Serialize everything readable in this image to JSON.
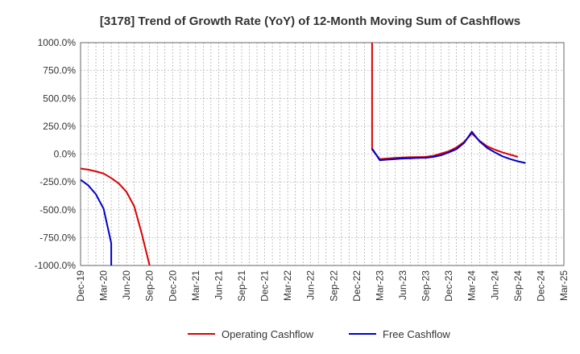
{
  "chart_data": {
    "type": "line",
    "title": "[3178]  Trend of Growth Rate (YoY) of 12-Month Moving Sum of Cashflows",
    "xlabel": "",
    "ylabel": "",
    "ylim": [
      -1000,
      1000
    ],
    "y_ticks": [
      1000,
      750,
      500,
      250,
      0,
      -250,
      -500,
      -750,
      -1000
    ],
    "y_tick_labels": [
      "1000.0%",
      "750.0%",
      "500.0%",
      "250.0%",
      "0.0%",
      "-250.0%",
      "-500.0%",
      "-750.0%",
      "-1000.0%"
    ],
    "x_tick_labels": [
      "Dec-19",
      "Mar-20",
      "Jun-20",
      "Sep-20",
      "Dec-20",
      "Mar-21",
      "Jun-21",
      "Sep-21",
      "Dec-21",
      "Mar-22",
      "Jun-22",
      "Sep-22",
      "Dec-22",
      "Mar-23",
      "Jun-23",
      "Sep-23",
      "Dec-23",
      "Mar-24",
      "Jun-24",
      "Sep-24",
      "Dec-24",
      "Mar-25"
    ],
    "x_start": "Dec-19",
    "x_end": "Mar-25",
    "grid": true,
    "legend_position": "bottom",
    "series": [
      {
        "name": "Operating Cashflow",
        "color": "#dd0000",
        "segments": [
          [
            [
              "Dec-19",
              -130
            ],
            [
              "Jan-20",
              -140
            ],
            [
              "Feb-20",
              -155
            ],
            [
              "Mar-20",
              -175
            ],
            [
              "Apr-20",
              -215
            ],
            [
              "May-20",
              -265
            ],
            [
              "Jun-20",
              -340
            ],
            [
              "Jul-20",
              -470
            ],
            [
              "Aug-20",
              -720
            ],
            [
              "Sep-20",
              -1080
            ]
          ],
          [
            [
              "Feb-23",
              1150
            ],
            [
              "Feb-23",
              40
            ],
            [
              "Mar-23",
              -45
            ],
            [
              "Apr-23",
              -40
            ],
            [
              "May-23",
              -35
            ],
            [
              "Jun-23",
              -30
            ],
            [
              "Jul-23",
              -28
            ],
            [
              "Aug-23",
              -27
            ],
            [
              "Sep-23",
              -25
            ],
            [
              "Oct-23",
              -15
            ],
            [
              "Nov-23",
              5
            ],
            [
              "Dec-23",
              25
            ],
            [
              "Jan-24",
              60
            ],
            [
              "Feb-24",
              110
            ],
            [
              "Mar-24",
              185
            ],
            [
              "Apr-24",
              120
            ],
            [
              "May-24",
              70
            ],
            [
              "Jun-24",
              40
            ],
            [
              "Jul-24",
              15
            ],
            [
              "Aug-24",
              -5
            ],
            [
              "Sep-24",
              -25
            ]
          ]
        ]
      },
      {
        "name": "Free Cashflow",
        "color": "#0000cc",
        "segments": [
          [
            [
              "Dec-19",
              -230
            ],
            [
              "Jan-20",
              -280
            ],
            [
              "Feb-20",
              -360
            ],
            [
              "Mar-20",
              -490
            ],
            [
              "Apr-20",
              -800
            ],
            [
              "Apr-20",
              -1080
            ]
          ],
          [
            [
              "Feb-23",
              50
            ],
            [
              "Mar-23",
              -55
            ],
            [
              "Apr-23",
              -50
            ],
            [
              "May-23",
              -45
            ],
            [
              "Jun-23",
              -40
            ],
            [
              "Jul-23",
              -38
            ],
            [
              "Aug-23",
              -35
            ],
            [
              "Sep-23",
              -33
            ],
            [
              "Oct-23",
              -25
            ],
            [
              "Nov-23",
              -10
            ],
            [
              "Dec-23",
              15
            ],
            [
              "Jan-24",
              45
            ],
            [
              "Feb-24",
              100
            ],
            [
              "Mar-24",
              200
            ],
            [
              "Apr-24",
              115
            ],
            [
              "May-24",
              55
            ],
            [
              "Jun-24",
              15
            ],
            [
              "Jul-24",
              -20
            ],
            [
              "Aug-24",
              -45
            ],
            [
              "Sep-24",
              -65
            ],
            [
              "Oct-24",
              -80
            ]
          ]
        ]
      }
    ]
  }
}
